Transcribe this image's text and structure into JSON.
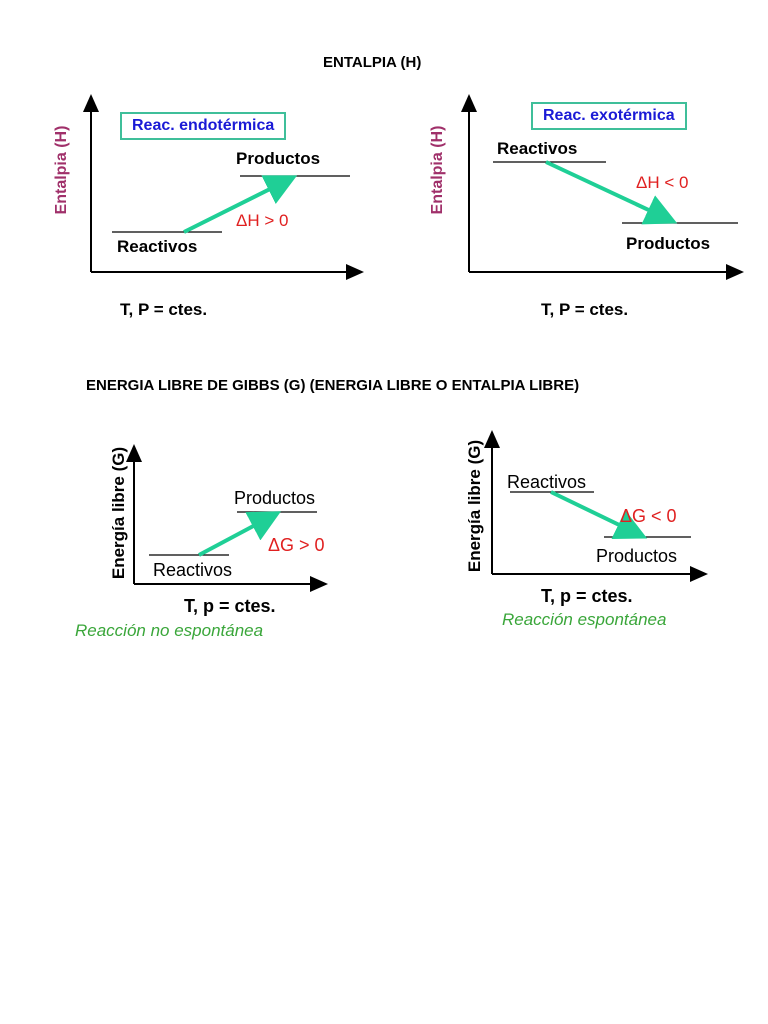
{
  "headings": {
    "enthalpy": "ENTALPIA (H)",
    "gibbs": "ENERGIA LIBRE DE GIBBS (G) (ENERGIA LIBRE O ENTALPIA LIBRE)"
  },
  "enthalpy_panels": [
    {
      "y_axis_label": "Entalpia (H)",
      "box_label": "Reac. endotérmica",
      "upper_label": "Productos",
      "lower_label": "Reactivos",
      "delta_label": "ΔH > 0",
      "conditions": "T, P = ctes."
    },
    {
      "y_axis_label": "Entalpia (H)",
      "box_label": "Reac. exotérmica",
      "upper_label": "Reactivos",
      "lower_label": "Productos",
      "delta_label": "ΔH < 0",
      "conditions": "T, P = ctes."
    }
  ],
  "gibbs_panels": [
    {
      "y_axis_label": "Energía libre (G)",
      "upper_label": "Productos",
      "lower_label": "Reactivos",
      "delta_label": "ΔG > 0",
      "conditions": "T, p = ctes.",
      "verdict": "Reacción  no espontánea"
    },
    {
      "y_axis_label": "Energía libre (G)",
      "upper_label": "Reactivos",
      "lower_label": "Productos",
      "delta_label": "ΔG < 0",
      "conditions": "T, p = ctes.",
      "verdict": "Reacción   espontánea"
    }
  ],
  "colors": {
    "arrow": "#1fcf96",
    "delta": "#e02020",
    "ylabel_enthalpy": "#a0306a",
    "verdict": "#3aa63a",
    "box_text": "#1a1ad6",
    "box_border": "#3fbf9a"
  }
}
